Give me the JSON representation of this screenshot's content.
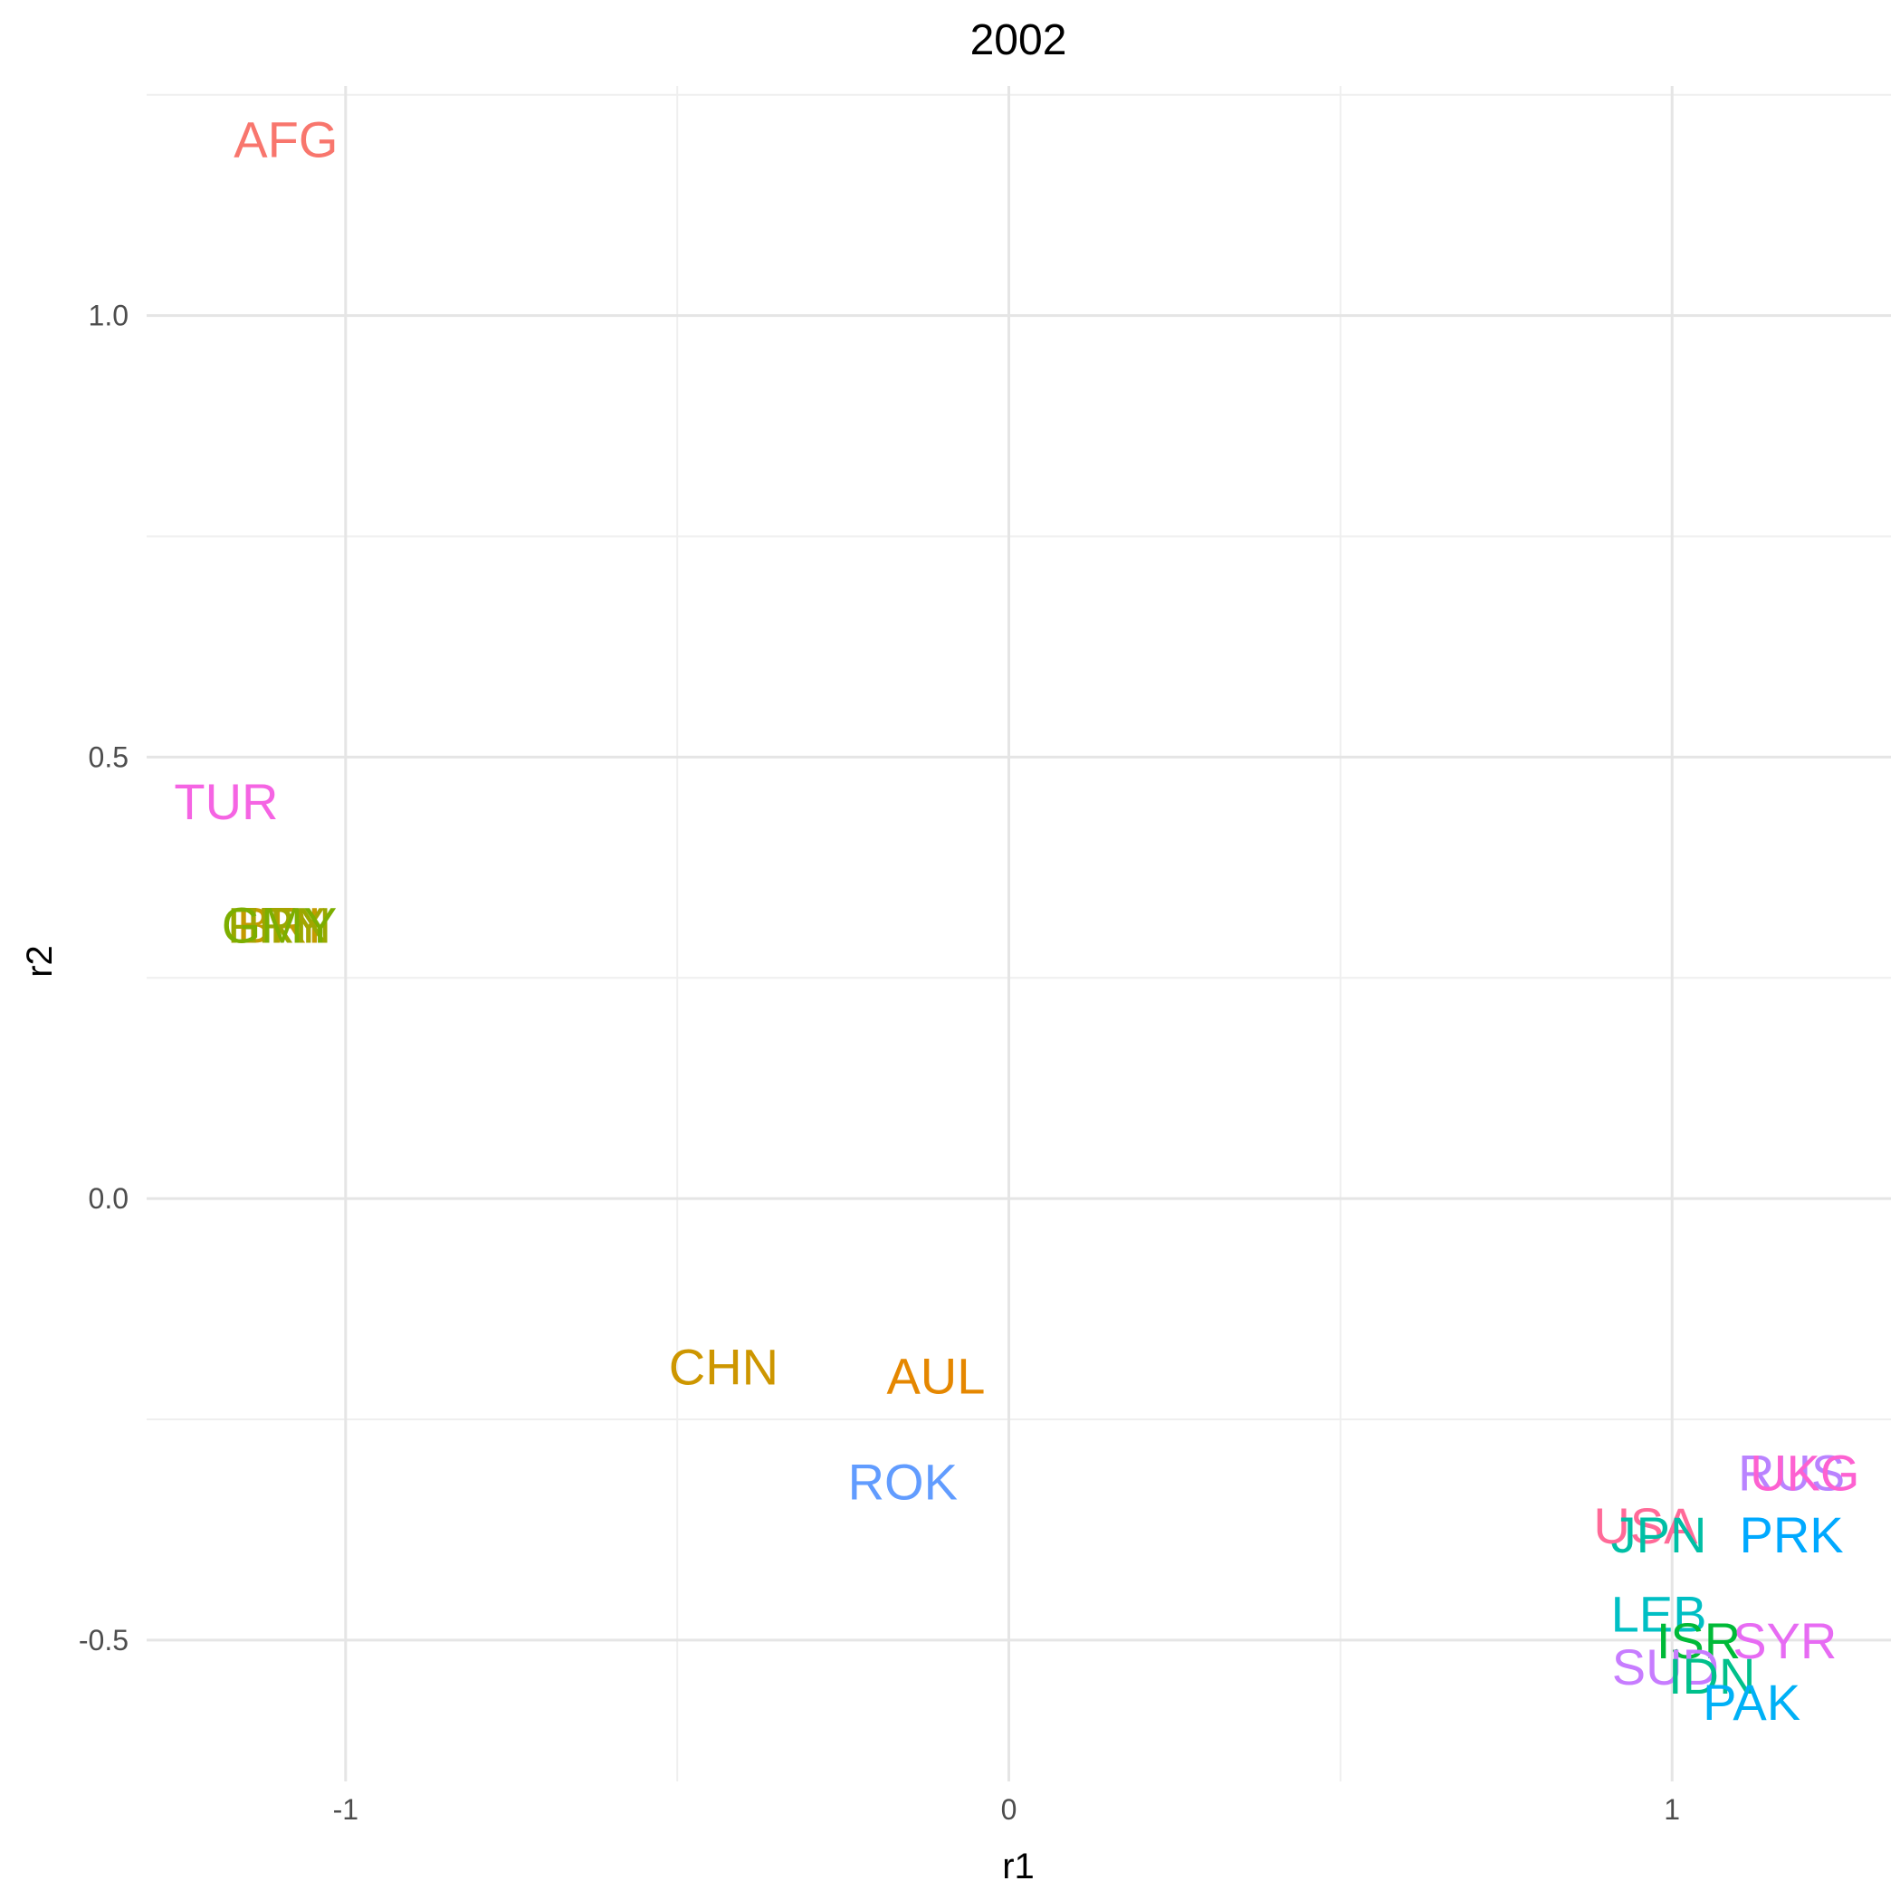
{
  "chart_data": {
    "type": "scatter",
    "title": "2002",
    "xlabel": "r1",
    "ylabel": "r2",
    "xlim": [
      -1.3,
      1.33
    ],
    "ylim": [
      -0.66,
      1.26
    ],
    "x_ticks": [
      -1,
      0,
      1
    ],
    "x_tick_labels": [
      "-1",
      "0",
      "1"
    ],
    "y_ticks": [
      -0.5,
      0.0,
      0.5,
      1.0
    ],
    "y_tick_labels": [
      "-0.5",
      "0.0",
      "0.5",
      "1.0"
    ],
    "grid": true,
    "legend": "none",
    "points": [
      {
        "label": "AFG",
        "x": -1.09,
        "y": 1.2,
        "color": "#F8766D"
      },
      {
        "label": "TUR",
        "x": -1.18,
        "y": 0.45,
        "color": "#F564E3"
      },
      {
        "label": "BRI",
        "x": -1.1,
        "y": 0.31,
        "color": "#C49A00"
      },
      {
        "label": "FRN",
        "x": -1.1,
        "y": 0.31,
        "color": "#99A800"
      },
      {
        "label": "ITY",
        "x": -1.09,
        "y": 0.31,
        "color": "#A3A500"
      },
      {
        "label": "GMY",
        "x": -1.1,
        "y": 0.31,
        "color": "#7CAE00"
      },
      {
        "label": "CHN",
        "x": -0.43,
        "y": -0.19,
        "color": "#CD9600"
      },
      {
        "label": "AUL",
        "x": -0.11,
        "y": -0.2,
        "color": "#E58700"
      },
      {
        "label": "ROK",
        "x": -0.16,
        "y": -0.32,
        "color": "#619CFF"
      },
      {
        "label": "RUS",
        "x": 1.18,
        "y": -0.31,
        "color": "#B983FF"
      },
      {
        "label": "UKG",
        "x": 1.2,
        "y": -0.31,
        "color": "#FD61D1"
      },
      {
        "label": "PRK",
        "x": 1.18,
        "y": -0.38,
        "color": "#00A9FF"
      },
      {
        "label": "USA",
        "x": 0.96,
        "y": -0.37,
        "color": "#FF6A98"
      },
      {
        "label": "JPN",
        "x": 0.98,
        "y": -0.38,
        "color": "#00BFA5"
      },
      {
        "label": "LEB",
        "x": 0.98,
        "y": -0.47,
        "color": "#00BFC4"
      },
      {
        "label": "ISR",
        "x": 1.04,
        "y": -0.5,
        "color": "#00BA38"
      },
      {
        "label": "SYR",
        "x": 1.17,
        "y": -0.5,
        "color": "#E76BF3"
      },
      {
        "label": "SUD",
        "x": 0.99,
        "y": -0.53,
        "color": "#C77CFF"
      },
      {
        "label": "IDN",
        "x": 1.06,
        "y": -0.54,
        "color": "#00C08B"
      },
      {
        "label": "PAK",
        "x": 1.12,
        "y": -0.57,
        "color": "#00B0F6"
      }
    ]
  }
}
